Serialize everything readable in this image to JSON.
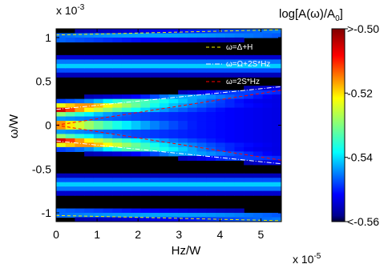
{
  "chart_data": {
    "type": "heatmap",
    "xlabel": "Hz/W",
    "ylabel": "ω/W",
    "x_multiplier": "x 10",
    "x_exponent": "-5",
    "y_multiplier": "x 10",
    "y_exponent": "-3",
    "xlim": [
      0,
      5.5
    ],
    "ylim": [
      -1.1,
      1.1
    ],
    "x_ticks": [
      "0",
      "1",
      "2",
      "3",
      "4",
      "5"
    ],
    "x_tick_values": [
      0,
      1,
      2,
      3,
      4,
      5
    ],
    "y_ticks": [
      "1",
      "0.5",
      "0",
      "-0.5",
      "-1"
    ],
    "y_tick_values": [
      1,
      0.5,
      0,
      -0.5,
      -1
    ],
    "colorbar": {
      "title_prefix": "log[A(ω)/A",
      "title_sub": "0",
      "title_suffix": "]",
      "range": [
        -0.56,
        -0.5
      ],
      "ticks": [
        ">-0.50",
        "-0.52",
        "-0.54",
        "<-0.56"
      ],
      "tick_values": [
        -0.5,
        -0.52,
        -0.54,
        -0.56
      ]
    },
    "legend": {
      "placement": "top-right",
      "entries": [
        {
          "label": "ω=Δ+H",
          "color": "#f0f000",
          "style": "dashed"
        },
        {
          "label": "ω=Ω+2S*Hz",
          "color": "#ffffff",
          "style": "dash-dot"
        },
        {
          "label": "ω=2S*Hz",
          "color": "#ff0000",
          "style": "dashed"
        }
      ]
    },
    "series": [
      {
        "name": "ω=Δ+H",
        "branches": [
          {
            "x": [
              0,
              5.5
            ],
            "y": [
              1.03,
              1.09
            ]
          },
          {
            "x": [
              0,
              5.5
            ],
            "y": [
              -1.03,
              -1.09
            ]
          }
        ]
      },
      {
        "name": "ω=Ω+2S*Hz",
        "branches": [
          {
            "x": [
              0,
              5.5
            ],
            "y": [
              0.18,
              0.44
            ]
          },
          {
            "x": [
              0,
              5.5
            ],
            "y": [
              -0.18,
              -0.44
            ]
          }
        ]
      },
      {
        "name": "ω=2S*Hz",
        "branches": [
          {
            "x": [
              0,
              5.5
            ],
            "y": [
              0.0,
              0.4
            ]
          },
          {
            "x": [
              0,
              5.5
            ],
            "y": [
              0.0,
              -0.4
            ]
          }
        ]
      }
    ]
  }
}
